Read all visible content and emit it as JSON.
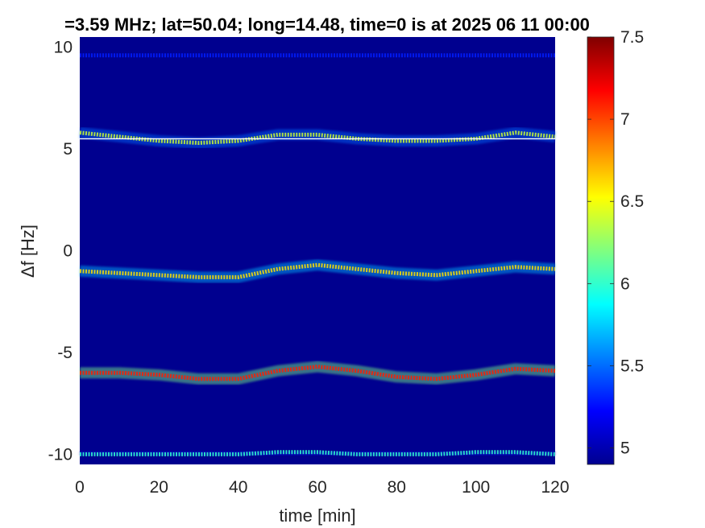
{
  "chart_data": {
    "type": "heatmap",
    "title": "=3.59 MHz;  lat=50.04; long=14.48, time=0 is at 2025 06 11 00:00",
    "xlabel": "time [min]",
    "ylabel": "Δf [Hz]",
    "xlim": [
      0,
      120
    ],
    "ylim": [
      -10.5,
      10.5
    ],
    "xticks": [
      "0",
      "20",
      "40",
      "60",
      "80",
      "100",
      "120"
    ],
    "yticks": [
      "10",
      "5",
      "0",
      "-5",
      "-10"
    ],
    "colorbar": {
      "clim": [
        4.9,
        7.5
      ],
      "ticks": [
        "5",
        "5.5",
        "6",
        "6.5",
        "7",
        "7.5"
      ],
      "colormap": "jet"
    },
    "background_color": "#00008f",
    "grid": false,
    "traces": [
      {
        "name": "",
        "t": [
          0,
          10,
          20,
          30,
          40,
          50,
          60,
          70,
          80,
          90,
          100,
          110,
          120
        ],
        "df": [
          9.6,
          9.6,
          9.6,
          9.6,
          9.6,
          9.6,
          9.6,
          9.6,
          9.6,
          9.6,
          9.6,
          9.6,
          9.6
        ],
        "intensity": 5.3
      },
      {
        "name": "",
        "t": [
          0,
          10,
          20,
          30,
          40,
          50,
          60,
          70,
          80,
          90,
          100,
          110,
          120
        ],
        "df": [
          5.8,
          5.6,
          5.4,
          5.3,
          5.4,
          5.7,
          5.7,
          5.5,
          5.4,
          5.4,
          5.5,
          5.8,
          5.6
        ],
        "intensity": 6.4
      },
      {
        "name": "",
        "t": [
          0,
          10,
          20,
          30,
          40,
          50,
          60,
          70,
          80,
          90,
          100,
          110,
          120
        ],
        "df": [
          -1.0,
          -1.1,
          -1.2,
          -1.3,
          -1.3,
          -0.9,
          -0.7,
          -0.9,
          -1.1,
          -1.2,
          -1.0,
          -0.8,
          -0.9
        ],
        "intensity": 6.6
      },
      {
        "name": "",
        "t": [
          0,
          10,
          20,
          30,
          40,
          50,
          60,
          70,
          80,
          90,
          100,
          110,
          120
        ],
        "df": [
          -6.0,
          -6.0,
          -6.1,
          -6.3,
          -6.3,
          -5.9,
          -5.7,
          -5.9,
          -6.2,
          -6.3,
          -6.1,
          -5.8,
          -5.9
        ],
        "intensity": 7.1
      },
      {
        "name": "",
        "t": [
          0,
          10,
          20,
          30,
          40,
          50,
          60,
          70,
          80,
          90,
          100,
          110,
          120
        ],
        "df": [
          -10.0,
          -10.0,
          -10.0,
          -10.0,
          -10.0,
          -9.9,
          -9.9,
          -10.0,
          -10.0,
          -10.0,
          -9.9,
          -9.9,
          -10.0
        ],
        "intensity": 6.0
      }
    ],
    "reference_line": {
      "df": 5.5,
      "color": "#ffffff"
    }
  }
}
